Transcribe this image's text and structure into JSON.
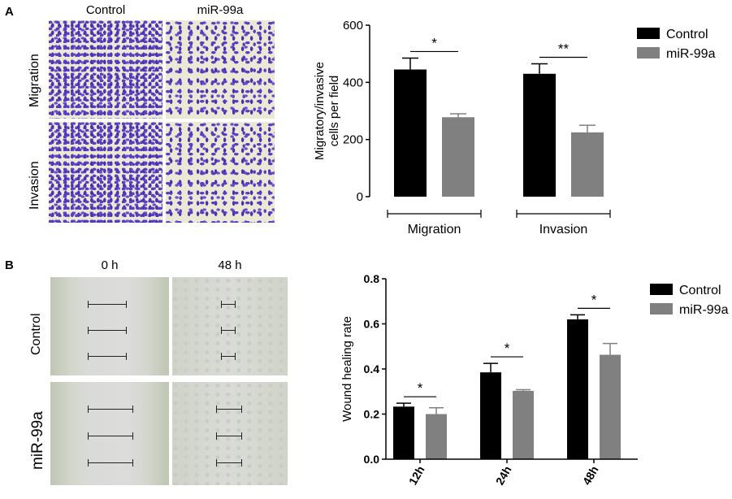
{
  "panel_a": {
    "letter": "A",
    "columns": [
      "Control",
      "miR-99a"
    ],
    "rows": [
      "Migration",
      "Invasion"
    ]
  },
  "panel_b": {
    "letter": "B",
    "columns": [
      "0 h",
      "48 h"
    ],
    "rows": [
      "Control",
      "miR-99a"
    ]
  },
  "colors": {
    "control": "#000000",
    "mir99a": "#808080"
  },
  "chart_data": [
    {
      "type": "bar",
      "title": "",
      "xlabel": "",
      "ylabel": "Migratory/invasive cells per field",
      "ylim": [
        0,
        600
      ],
      "yticks": [
        0,
        200,
        400,
        600
      ],
      "categories": [
        "Migration",
        "Invasion"
      ],
      "series": [
        {
          "name": "Control",
          "values": [
            445,
            430
          ],
          "errors": [
            40,
            35
          ]
        },
        {
          "name": "miR-99a",
          "values": [
            278,
            225
          ],
          "errors": [
            12,
            25
          ]
        }
      ],
      "significance": [
        "*",
        "**"
      ],
      "legend": "top-right"
    },
    {
      "type": "bar",
      "title": "",
      "xlabel": "",
      "ylabel": "Wound healing rate",
      "ylim": [
        0,
        0.8
      ],
      "yticks": [
        "0.0",
        "0.2",
        "0.4",
        "0.6",
        "0.8"
      ],
      "categories": [
        "12h",
        "24h",
        "48h"
      ],
      "series": [
        {
          "name": "Control",
          "values": [
            0.233,
            0.385,
            0.62
          ],
          "errors": [
            0.015,
            0.04,
            0.02
          ]
        },
        {
          "name": "miR-99a",
          "values": [
            0.2,
            0.303,
            0.463
          ],
          "errors": [
            0.028,
            0.005,
            0.05
          ]
        }
      ],
      "significance": [
        "*",
        "*",
        "*"
      ],
      "legend": "top-right"
    }
  ]
}
